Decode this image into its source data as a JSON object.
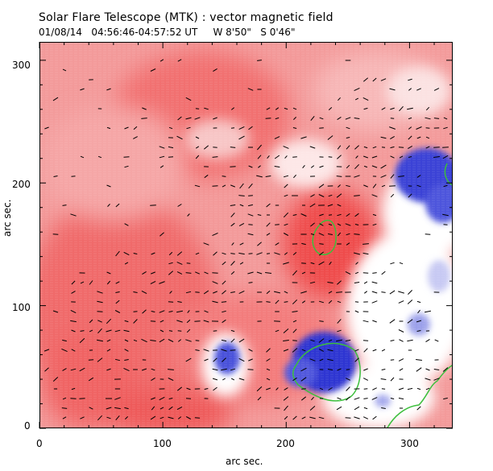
{
  "header": {
    "title": "Solar Flare Telescope (MTK) : vector magnetic field",
    "subtitle": "01/08/14   04:56:46-04:57:52 UT     W 8'50\"   S 0'46\""
  },
  "axes": {
    "xlabel": "arc sec.",
    "ylabel": "arc sec.",
    "xticks": [
      "0",
      "100",
      "200",
      "300"
    ],
    "yticks": [
      "0",
      "100",
      "200",
      "300"
    ],
    "xlim": [
      0,
      335
    ],
    "ylim": [
      0,
      315
    ]
  },
  "colors": {
    "positive_polarity": "#ef4a4a",
    "negative_polarity": "#3b42d6",
    "neutral": "#ffffff",
    "contour": "#3cbf3c",
    "vectors": "#000000"
  }
}
